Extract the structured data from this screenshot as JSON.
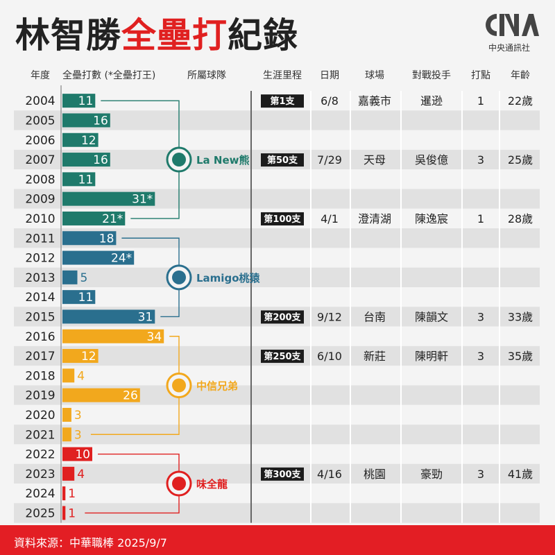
{
  "title": {
    "part1": "林智勝",
    "part2": "全壘打",
    "part3": "紀錄"
  },
  "logo": {
    "text": "CNA",
    "sub": "中央通訊社"
  },
  "headers": {
    "year": "年度",
    "homeruns": "全壘打數 (*全壘打王)",
    "team": "所屬球隊",
    "milestone": "生涯里程",
    "date": "日期",
    "venue": "球場",
    "pitcher": "對戰投手",
    "rbi": "打點",
    "age": "年齡"
  },
  "source": "資料來源：中華職棒 2025/9/7",
  "chart_data": {
    "type": "bar",
    "orientation": "horizontal",
    "categories": [
      "2004",
      "2005",
      "2006",
      "2007",
      "2008",
      "2009",
      "2010",
      "2011",
      "2012",
      "2013",
      "2014",
      "2015",
      "2016",
      "2017",
      "2018",
      "2019",
      "2020",
      "2021",
      "2022",
      "2023",
      "2024",
      "2025"
    ],
    "values": [
      11,
      16,
      12,
      16,
      11,
      31,
      21,
      18,
      24,
      5,
      11,
      31,
      34,
      12,
      4,
      26,
      3,
      3,
      10,
      4,
      1,
      1
    ],
    "labels": [
      "11",
      "16",
      "12",
      "16",
      "11",
      "31*",
      "21*",
      "18",
      "24*",
      "5",
      "11",
      "31",
      "34",
      "12",
      "4",
      "26",
      "3",
      "3",
      "10",
      "4",
      "1",
      "1"
    ],
    "xlim": [
      0,
      36
    ],
    "teams": [
      {
        "name": "La New熊",
        "color": "#1f7a6b",
        "years": [
          "2004",
          "2010"
        ]
      },
      {
        "name": "Lamigo桃猿",
        "color": "#2a6f8e",
        "years": [
          "2011",
          "2015"
        ]
      },
      {
        "name": "中信兄弟",
        "color": "#f2a81d",
        "years": [
          "2016",
          "2021"
        ]
      },
      {
        "name": "味全龍",
        "color": "#e02020",
        "years": [
          "2022",
          "2025"
        ]
      }
    ],
    "milestones": [
      {
        "year": "2004",
        "label": "第1支",
        "date": "6/8",
        "venue": "嘉義市",
        "pitcher": "暹逊",
        "rbi": "1",
        "age": "22歲"
      },
      {
        "year": "2007",
        "label": "第50支",
        "date": "7/29",
        "venue": "天母",
        "pitcher": "吳俊億",
        "rbi": "3",
        "age": "25歲"
      },
      {
        "year": "2010",
        "label": "第100支",
        "date": "4/1",
        "venue": "澄清湖",
        "pitcher": "陳逸宸",
        "rbi": "1",
        "age": "28歲"
      },
      {
        "year": "2015",
        "label": "第200支",
        "date": "9/12",
        "venue": "台南",
        "pitcher": "陳韻文",
        "rbi": "3",
        "age": "33歲"
      },
      {
        "year": "2017",
        "label": "第250支",
        "date": "6/10",
        "venue": "新莊",
        "pitcher": "陳明軒",
        "rbi": "3",
        "age": "35歲"
      },
      {
        "year": "2023",
        "label": "第300支",
        "date": "4/16",
        "venue": "桃園",
        "pitcher": "豪勁",
        "rbi": "3",
        "age": "41歲"
      }
    ]
  }
}
